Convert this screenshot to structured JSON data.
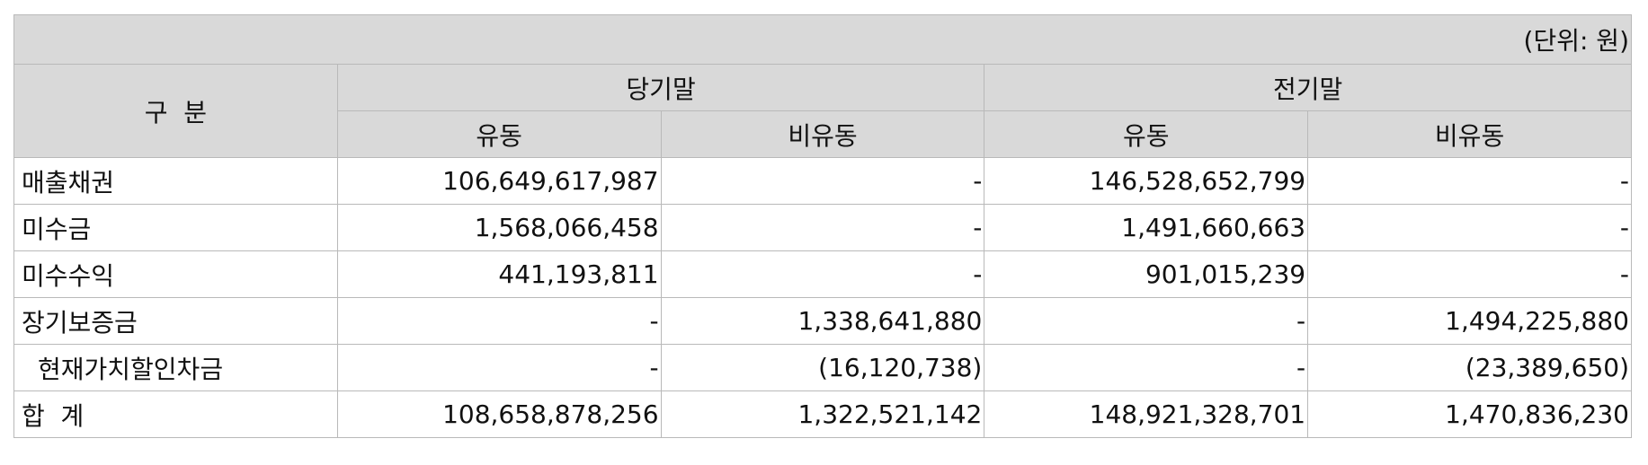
{
  "unit_label": "(단위: 원)",
  "header": {
    "category": "구  분",
    "current_period": "당기말",
    "prior_period": "전기말",
    "current": "유동",
    "non_current": "비유동"
  },
  "rows": [
    {
      "label": "매출채권",
      "cur_current": "106,649,617,987",
      "cur_noncurrent": "-",
      "prior_current": "146,528,652,799",
      "prior_noncurrent": "-"
    },
    {
      "label": "미수금",
      "cur_current": "1,568,066,458",
      "cur_noncurrent": "-",
      "prior_current": "1,491,660,663",
      "prior_noncurrent": "-"
    },
    {
      "label": "미수수익",
      "cur_current": "441,193,811",
      "cur_noncurrent": "-",
      "prior_current": "901,015,239",
      "prior_noncurrent": "-"
    },
    {
      "label": "장기보증금",
      "cur_current": "-",
      "cur_noncurrent": "1,338,641,880",
      "prior_current": "-",
      "prior_noncurrent": "1,494,225,880"
    },
    {
      "label": "현재가치할인차금",
      "cur_current": "-",
      "cur_noncurrent": "(16,120,738)",
      "prior_current": "-",
      "prior_noncurrent": "(23,389,650)"
    },
    {
      "label": "합  계",
      "cur_current": "108,658,878,256",
      "cur_noncurrent": "1,322,521,142",
      "prior_current": "148,921,328,701",
      "prior_noncurrent": "1,470,836,230"
    }
  ]
}
